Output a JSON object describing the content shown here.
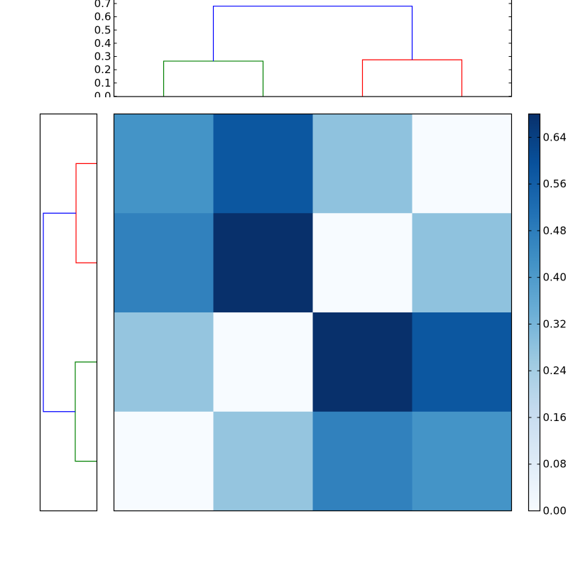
{
  "chart_data": [
    {
      "type": "dendrogram",
      "orientation": "top",
      "ylim": [
        0,
        0.7
      ],
      "yticks": [
        "0.0",
        "0.1",
        "0.2",
        "0.3",
        "0.4",
        "0.5",
        "0.6",
        "0.7"
      ],
      "leaves": 4,
      "links": [
        {
          "pair": [
            0,
            1
          ],
          "height": 0.265,
          "color": "#008000"
        },
        {
          "pair": [
            2,
            3
          ],
          "height": 0.275,
          "color": "#ff0000"
        },
        {
          "pair": [
            "c01",
            "c23"
          ],
          "height": 0.68,
          "color": "#0000ff"
        }
      ]
    },
    {
      "type": "dendrogram",
      "orientation": "left",
      "leaves": 4,
      "links": [
        {
          "pair": [
            0,
            1
          ],
          "height": 0.265,
          "color": "#ff0000"
        },
        {
          "pair": [
            2,
            3
          ],
          "height": 0.275,
          "color": "#008000"
        },
        {
          "pair": [
            "c01",
            "c23"
          ],
          "height": 0.68,
          "color": "#0000ff"
        }
      ]
    },
    {
      "type": "heatmap",
      "colormap": "Blues",
      "vmin": 0.0,
      "vmax": 0.68,
      "matrix": [
        [
          0.42,
          0.58,
          0.28,
          0.0
        ],
        [
          0.47,
          0.68,
          0.0,
          0.28
        ],
        [
          0.27,
          0.0,
          0.68,
          0.58
        ],
        [
          0.0,
          0.27,
          0.47,
          0.42
        ]
      ],
      "colorbar": {
        "ticks": [
          0.0,
          0.08,
          0.16,
          0.24,
          0.32,
          0.4,
          0.48,
          0.56,
          0.64
        ],
        "tick_labels": [
          "0.00",
          "0.08",
          "0.16",
          "0.24",
          "0.32",
          "0.40",
          "0.48",
          "0.56",
          "0.64"
        ]
      }
    }
  ]
}
